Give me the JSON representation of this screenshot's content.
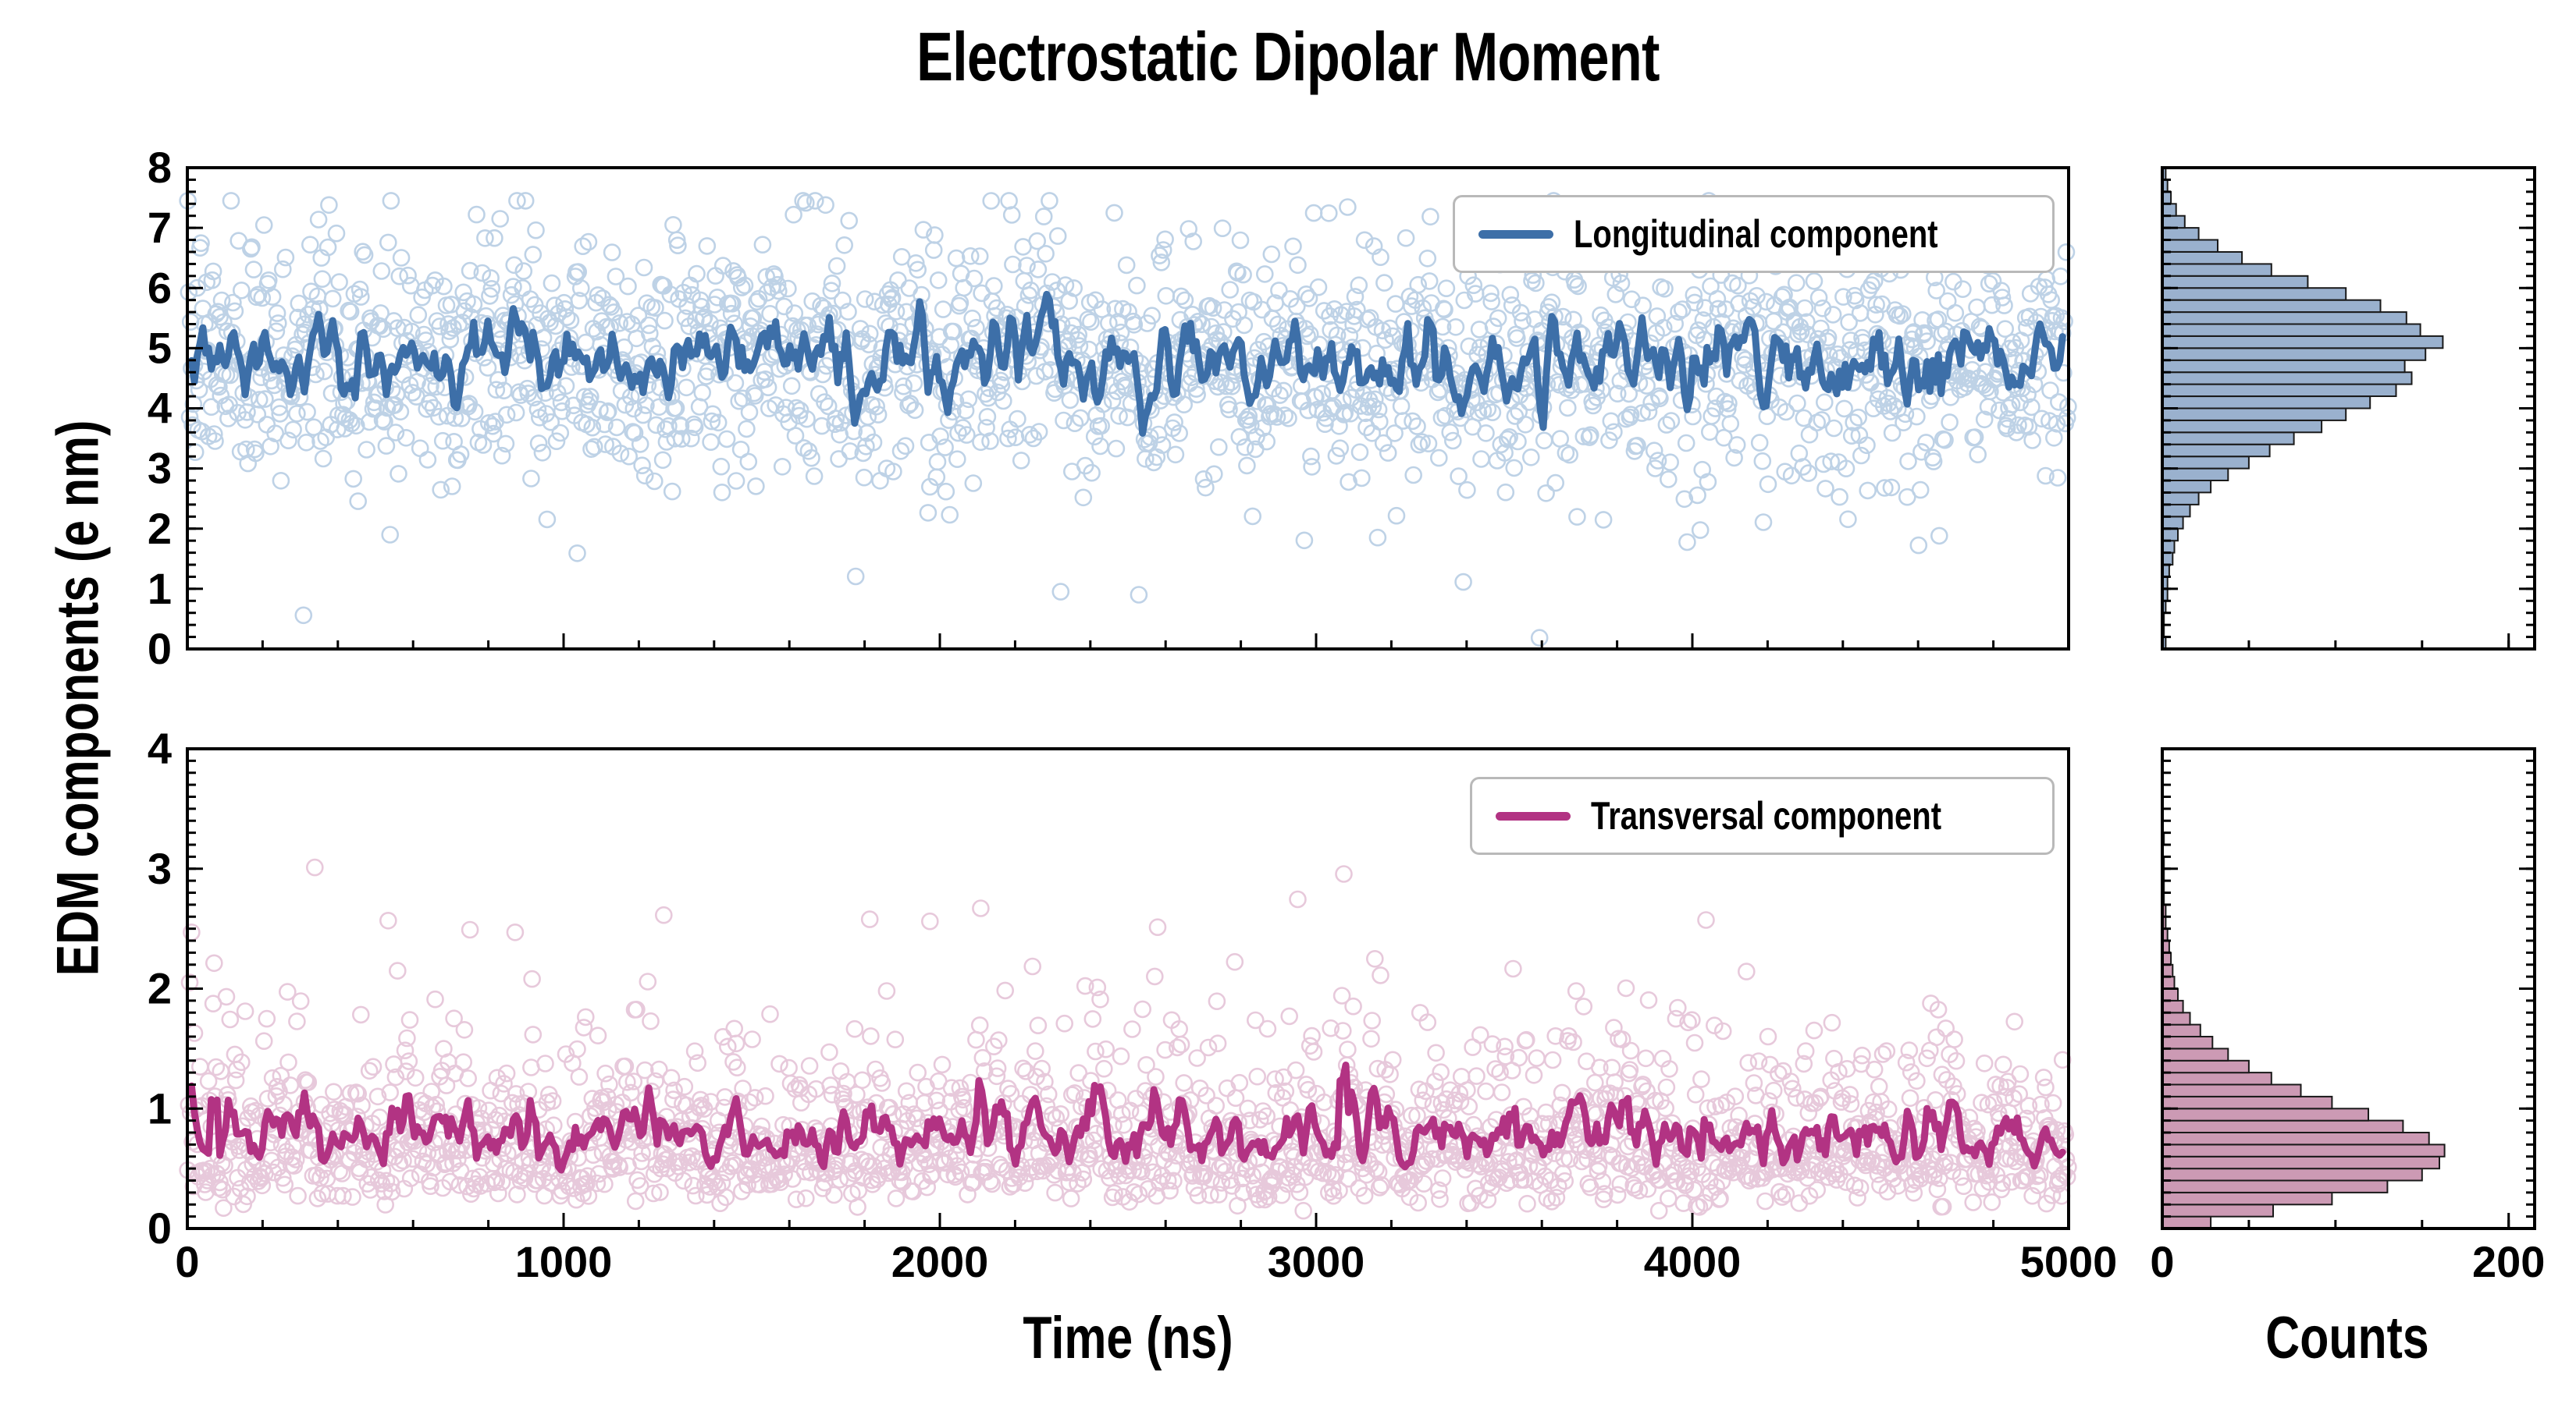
{
  "chart_data": {
    "type": "scatter+line+marginal_histogram",
    "title": "Electrostatic Dipolar Moment",
    "xlabel": "Time (ns)",
    "ylabel": "EDM components (e nm)",
    "hist_xlabel": "Counts",
    "x_range": [
      0,
      5000
    ],
    "x_ticks": [
      0,
      1000,
      2000,
      3000,
      4000,
      5000
    ],
    "x_minor_step": 200,
    "hist_x_range": [
      0,
      215
    ],
    "hist_x_ticks": [
      0,
      200
    ],
    "hist_x_minor_step": 50,
    "panels": [
      {
        "id": "longitudinal",
        "legend": "Longitudinal component",
        "line_color": "#3D6FA8",
        "marker_color": "#7FA6CF",
        "hist_fill": "#8FA9C9",
        "hist_edge": "#1a1a1a",
        "y_range": [
          0,
          8
        ],
        "y_ticks": [
          0,
          1,
          2,
          3,
          4,
          5,
          6,
          7,
          8
        ],
        "y_minor_step": 0.2,
        "scatter": {
          "n": 2000,
          "seed": 7,
          "distribution": "normal",
          "mean": 4.8,
          "std": 1.0,
          "min": 0.1,
          "max": 7.45,
          "outlier_frac": 0.004,
          "outlier_min": 0.15,
          "outlier_max": 2.6
        },
        "line_window": 9,
        "line_sample_step": 3,
        "hist": {
          "bin_start": 0,
          "bin_width": 0.2,
          "counts": [
            2,
            1,
            1,
            2,
            3,
            3,
            4,
            6,
            7,
            9,
            12,
            16,
            21,
            28,
            38,
            50,
            62,
            76,
            92,
            106,
            120,
            135,
            144,
            140,
            152,
            162,
            149,
            141,
            126,
            106,
            84,
            63,
            46,
            32,
            21,
            13,
            8,
            5,
            3,
            2
          ]
        }
      },
      {
        "id": "transversal",
        "legend": "Transversal component",
        "line_color": "#B23383",
        "marker_color": "#D194B8",
        "hist_fill": "#C78FAC",
        "hist_edge": "#1a1a1a",
        "y_range": [
          0,
          4
        ],
        "y_ticks": [
          0,
          1,
          2,
          3,
          4
        ],
        "y_minor_step": 0.1,
        "scatter": {
          "n": 2000,
          "seed": 13,
          "distribution": "lognormal",
          "log_mean": -0.38,
          "log_std": 0.5,
          "min": 0.04,
          "max": 3.35,
          "outlier_frac": 0
        },
        "line_window": 9,
        "line_sample_step": 3,
        "hist": {
          "bin_start": 0,
          "bin_width": 0.1,
          "counts": [
            28,
            64,
            98,
            130,
            150,
            160,
            163,
            154,
            139,
            119,
            98,
            80,
            63,
            50,
            38,
            29,
            22,
            16,
            12,
            9,
            7,
            6,
            5,
            4,
            3,
            2,
            2,
            1,
            1,
            1,
            1,
            0,
            1,
            0,
            0,
            0,
            0,
            0,
            0,
            0
          ]
        }
      }
    ]
  }
}
